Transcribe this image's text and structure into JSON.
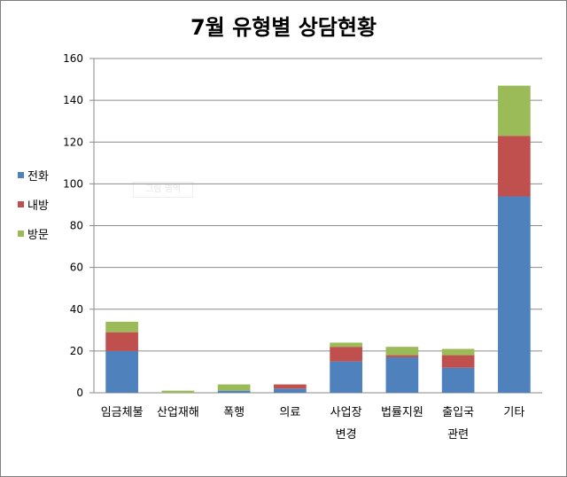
{
  "chart_data": {
    "type": "bar",
    "stacked": true,
    "title": "7월 유형별 상담현황",
    "categories": [
      [
        "임금체불"
      ],
      [
        "산업재해"
      ],
      [
        "폭행"
      ],
      [
        "의료"
      ],
      [
        "사업장",
        "변경"
      ],
      [
        "법률지원"
      ],
      [
        "출입국",
        "관련"
      ],
      [
        "기타"
      ]
    ],
    "series": [
      {
        "name": "전화",
        "color": "#4f81bd",
        "values": [
          20,
          0,
          1,
          2,
          15,
          17,
          12,
          94
        ]
      },
      {
        "name": "내방",
        "color": "#c0504d",
        "values": [
          9,
          0,
          0,
          2,
          7,
          1,
          6,
          29
        ]
      },
      {
        "name": "방문",
        "color": "#9bbb59",
        "values": [
          5,
          1,
          3,
          0,
          2,
          4,
          3,
          24
        ]
      }
    ],
    "ylim": [
      0,
      160
    ],
    "yticks": [
      0,
      20,
      40,
      60,
      80,
      100,
      120,
      140,
      160
    ],
    "grid": true,
    "legend_position": "left"
  },
  "watermark": "그림 영역"
}
